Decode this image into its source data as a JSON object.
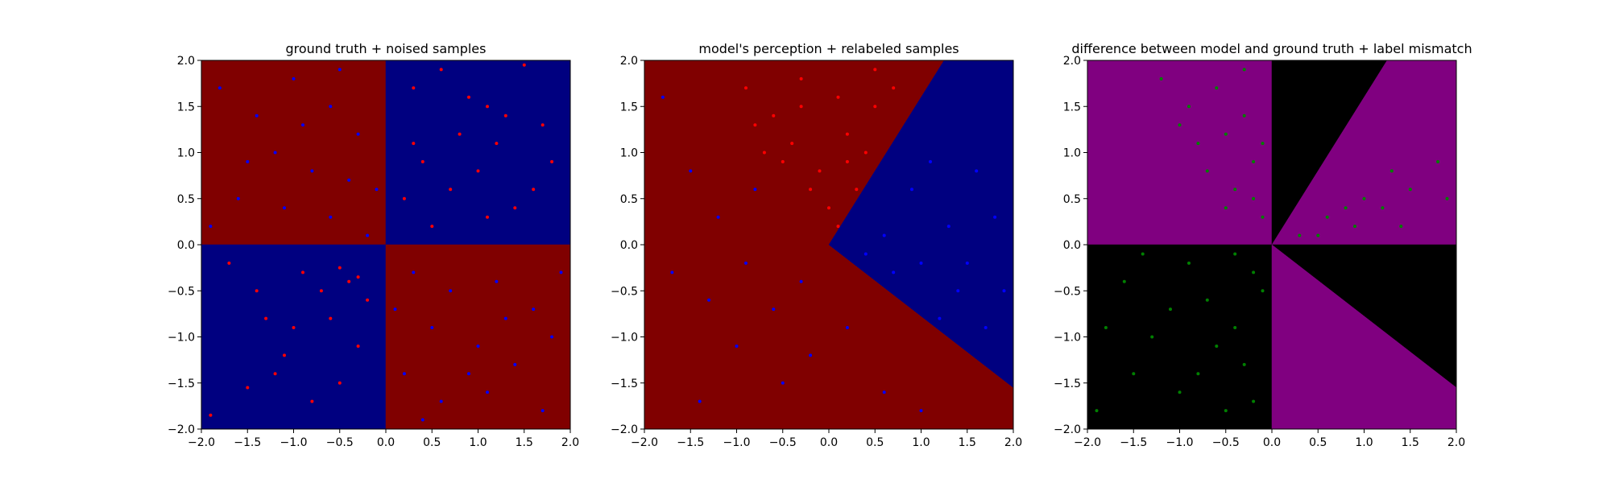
{
  "colors": {
    "dark_red": "#800000",
    "dark_blue": "#000080",
    "purple": "#800080",
    "black": "#000000",
    "point_red": "#ff0000",
    "point_blue": "#0000ff",
    "point_green": "#008000"
  },
  "chart_data": [
    {
      "type": "scatter",
      "title": "ground truth + noised samples",
      "xlabel": "",
      "ylabel": "",
      "xlim": [
        -2.0,
        2.0
      ],
      "ylim": [
        -2.0,
        2.0
      ],
      "xticks": [
        "−2.0",
        "−1.5",
        "−1.0",
        "−0.5",
        "0.0",
        "0.5",
        "1.0",
        "1.5",
        "2.0"
      ],
      "yticks": [
        "−2.0",
        "−1.5",
        "−1.0",
        "−0.5",
        "0.0",
        "0.5",
        "1.0",
        "1.5",
        "2.0"
      ],
      "grid": false,
      "background_regions": [
        {
          "label": "class red",
          "color": "#800000",
          "polygon": [
            [
              -2,
              0
            ],
            [
              0,
              0
            ],
            [
              0,
              2
            ],
            [
              -2,
              2
            ]
          ]
        },
        {
          "label": "class blue",
          "color": "#000080",
          "polygon": [
            [
              0,
              0
            ],
            [
              2,
              0
            ],
            [
              2,
              2
            ],
            [
              0,
              2
            ]
          ]
        },
        {
          "label": "class blue",
          "color": "#000080",
          "polygon": [
            [
              -2,
              -2
            ],
            [
              0,
              -2
            ],
            [
              0,
              0
            ],
            [
              -2,
              0
            ]
          ]
        },
        {
          "label": "class red",
          "color": "#800000",
          "polygon": [
            [
              0,
              -2
            ],
            [
              2,
              -2
            ],
            [
              2,
              0
            ],
            [
              0,
              0
            ]
          ]
        }
      ],
      "series": [
        {
          "color": "#ff0000",
          "points": [
            [
              0.3,
              1.7
            ],
            [
              0.6,
              1.9
            ],
            [
              1.1,
              1.5
            ],
            [
              1.5,
              1.95
            ],
            [
              0.8,
              1.2
            ],
            [
              1.2,
              1.1
            ],
            [
              0.4,
              0.9
            ],
            [
              1.7,
              1.3
            ],
            [
              0.2,
              0.5
            ],
            [
              0.7,
              0.6
            ],
            [
              1.0,
              0.8
            ],
            [
              1.4,
              0.4
            ],
            [
              1.8,
              0.9
            ],
            [
              0.5,
              0.2
            ],
            [
              1.1,
              0.3
            ],
            [
              1.6,
              0.6
            ],
            [
              0.9,
              1.6
            ],
            [
              0.3,
              1.1
            ],
            [
              1.3,
              1.4
            ],
            [
              -1.9,
              -1.85
            ],
            [
              -1.5,
              -1.55
            ],
            [
              -1.2,
              -1.4
            ],
            [
              -0.8,
              -1.7
            ],
            [
              -0.5,
              -1.5
            ],
            [
              -0.3,
              -1.1
            ],
            [
              -0.6,
              -0.8
            ],
            [
              -1.0,
              -0.9
            ],
            [
              -1.4,
              -0.5
            ],
            [
              -0.4,
              -0.4
            ],
            [
              -0.2,
              -0.6
            ],
            [
              -0.9,
              -0.3
            ],
            [
              -1.7,
              -0.2
            ],
            [
              -0.5,
              -0.25
            ],
            [
              -0.3,
              -0.35
            ],
            [
              -1.1,
              -1.2
            ],
            [
              -0.7,
              -0.5
            ],
            [
              -1.3,
              -0.8
            ]
          ]
        },
        {
          "color": "#0000ff",
          "points": [
            [
              -1.8,
              1.7
            ],
            [
              -1.4,
              1.4
            ],
            [
              -1.0,
              1.8
            ],
            [
              -0.6,
              1.5
            ],
            [
              -0.3,
              1.2
            ],
            [
              -1.2,
              1.0
            ],
            [
              -0.8,
              0.8
            ],
            [
              -0.4,
              0.7
            ],
            [
              -1.6,
              0.5
            ],
            [
              -1.1,
              0.4
            ],
            [
              -0.6,
              0.3
            ],
            [
              -0.2,
              0.1
            ],
            [
              -1.9,
              0.2
            ],
            [
              -0.9,
              1.3
            ],
            [
              -0.5,
              1.9
            ],
            [
              -1.5,
              0.9
            ],
            [
              -0.1,
              0.6
            ],
            [
              0.3,
              -0.3
            ],
            [
              0.7,
              -0.5
            ],
            [
              1.2,
              -0.4
            ],
            [
              1.6,
              -0.7
            ],
            [
              0.5,
              -0.9
            ],
            [
              1.0,
              -1.1
            ],
            [
              1.4,
              -1.3
            ],
            [
              1.8,
              -1.0
            ],
            [
              0.2,
              -1.4
            ],
            [
              0.6,
              -1.7
            ],
            [
              1.1,
              -1.6
            ],
            [
              1.7,
              -1.8
            ],
            [
              0.4,
              -1.9
            ],
            [
              0.9,
              -1.4
            ],
            [
              1.3,
              -0.8
            ],
            [
              0.1,
              -0.7
            ],
            [
              1.9,
              -0.3
            ]
          ]
        }
      ]
    },
    {
      "type": "scatter",
      "title": "model's perception + relabeled samples",
      "xlabel": "",
      "ylabel": "",
      "xlim": [
        -2.0,
        2.0
      ],
      "ylim": [
        -2.0,
        2.0
      ],
      "xticks": [
        "−2.0",
        "−1.5",
        "−1.0",
        "−0.5",
        "0.0",
        "0.5",
        "1.0",
        "1.5",
        "2.0"
      ],
      "yticks": [
        "−2.0",
        "−1.5",
        "−1.0",
        "−0.5",
        "0.0",
        "0.5",
        "1.0",
        "1.5",
        "2.0"
      ],
      "grid": false,
      "background_regions": [
        {
          "label": "class red",
          "color": "#800000",
          "polygon": [
            [
              -2,
              -2
            ],
            [
              2,
              -2
            ],
            [
              2,
              -1.55
            ],
            [
              0,
              0
            ],
            [
              1.25,
              2
            ],
            [
              -2,
              2
            ]
          ]
        },
        {
          "label": "class blue",
          "color": "#000080",
          "polygon": [
            [
              0,
              0
            ],
            [
              2,
              -1.55
            ],
            [
              2,
              2
            ],
            [
              1.25,
              2
            ]
          ]
        }
      ],
      "series": [
        {
          "color": "#ff0000",
          "points": [
            [
              -0.9,
              1.7
            ],
            [
              -0.6,
              1.4
            ],
            [
              -0.3,
              1.8
            ],
            [
              0.1,
              1.6
            ],
            [
              0.5,
              1.9
            ],
            [
              -0.7,
              1.0
            ],
            [
              -0.4,
              1.1
            ],
            [
              -0.1,
              0.8
            ],
            [
              0.2,
              1.2
            ],
            [
              0.5,
              1.5
            ],
            [
              -0.8,
              1.3
            ],
            [
              0.3,
              0.6
            ],
            [
              0.0,
              0.4
            ],
            [
              -0.2,
              0.6
            ],
            [
              0.4,
              1.0
            ],
            [
              0.7,
              1.7
            ],
            [
              -0.5,
              0.9
            ],
            [
              0.1,
              0.2
            ],
            [
              0.2,
              0.9
            ],
            [
              -0.3,
              1.5
            ]
          ]
        },
        {
          "color": "#0000ff",
          "points": [
            [
              -1.8,
              1.6
            ],
            [
              -1.5,
              0.8
            ],
            [
              -1.2,
              0.3
            ],
            [
              -1.7,
              -0.3
            ],
            [
              -1.3,
              -0.6
            ],
            [
              -0.9,
              -0.2
            ],
            [
              -0.6,
              -0.7
            ],
            [
              -0.3,
              -0.4
            ],
            [
              -1.0,
              -1.1
            ],
            [
              -0.5,
              -1.5
            ],
            [
              -1.4,
              -1.7
            ],
            [
              -0.2,
              -1.2
            ],
            [
              0.2,
              -0.9
            ],
            [
              0.6,
              -1.6
            ],
            [
              1.0,
              -1.8
            ],
            [
              -0.8,
              0.6
            ],
            [
              0.6,
              0.1
            ],
            [
              1.0,
              -0.2
            ],
            [
              1.4,
              -0.5
            ],
            [
              1.8,
              0.3
            ],
            [
              0.9,
              0.6
            ],
            [
              1.3,
              0.2
            ],
            [
              1.7,
              -0.9
            ],
            [
              1.2,
              -0.8
            ],
            [
              0.7,
              -0.3
            ],
            [
              1.6,
              0.8
            ],
            [
              0.4,
              -0.1
            ],
            [
              1.1,
              0.9
            ],
            [
              1.5,
              -0.2
            ],
            [
              1.9,
              -0.5
            ]
          ]
        }
      ]
    },
    {
      "type": "scatter",
      "title": "difference between model and ground truth + label mismatch",
      "xlabel": "",
      "ylabel": "",
      "xlim": [
        -2.0,
        2.0
      ],
      "ylim": [
        -2.0,
        2.0
      ],
      "xticks": [
        "−2.0",
        "−1.5",
        "−1.0",
        "−0.5",
        "0.0",
        "0.5",
        "1.0",
        "1.5",
        "2.0"
      ],
      "yticks": [
        "−2.0",
        "−1.5",
        "−1.0",
        "−0.5",
        "0.0",
        "0.5",
        "1.0",
        "1.5",
        "2.0"
      ],
      "grid": false,
      "background_regions": [
        {
          "label": "agree",
          "color": "#800080",
          "polygon": [
            [
              -2,
              0
            ],
            [
              0,
              0
            ],
            [
              0,
              2
            ],
            [
              -2,
              2
            ]
          ]
        },
        {
          "label": "differ",
          "color": "#000000",
          "polygon": [
            [
              0,
              0
            ],
            [
              1.25,
              2
            ],
            [
              0,
              2
            ]
          ]
        },
        {
          "label": "agree",
          "color": "#800080",
          "polygon": [
            [
              0,
              0
            ],
            [
              2,
              0
            ],
            [
              2,
              2
            ],
            [
              1.25,
              2
            ]
          ]
        },
        {
          "label": "differ",
          "color": "#000000",
          "polygon": [
            [
              -2,
              -2
            ],
            [
              0,
              -2
            ],
            [
              0,
              0
            ],
            [
              -2,
              0
            ]
          ]
        },
        {
          "label": "differ",
          "color": "#000000",
          "polygon": [
            [
              0,
              0
            ],
            [
              2,
              0
            ],
            [
              2,
              -1.55
            ]
          ]
        },
        {
          "label": "agree",
          "color": "#800080",
          "polygon": [
            [
              0,
              0
            ],
            [
              2,
              -1.55
            ],
            [
              2,
              -2
            ],
            [
              0,
              -2
            ]
          ]
        }
      ],
      "series": [
        {
          "color": "#008000",
          "points": [
            [
              -1.2,
              1.8
            ],
            [
              -0.9,
              1.5
            ],
            [
              -0.6,
              1.7
            ],
            [
              -0.3,
              1.9
            ],
            [
              -0.8,
              1.1
            ],
            [
              -0.5,
              1.2
            ],
            [
              -0.2,
              0.9
            ],
            [
              -0.4,
              0.6
            ],
            [
              -0.1,
              0.3
            ],
            [
              -0.7,
              0.8
            ],
            [
              -0.3,
              1.4
            ],
            [
              -0.1,
              1.1
            ],
            [
              -0.5,
              0.4
            ],
            [
              -1.0,
              1.3
            ],
            [
              -0.2,
              0.5
            ],
            [
              0.3,
              0.1
            ],
            [
              0.6,
              0.3
            ],
            [
              0.9,
              0.2
            ],
            [
              1.2,
              0.4
            ],
            [
              1.5,
              0.6
            ],
            [
              1.8,
              0.9
            ],
            [
              0.5,
              0.1
            ],
            [
              1.0,
              0.5
            ],
            [
              1.4,
              0.2
            ],
            [
              1.9,
              0.5
            ],
            [
              0.8,
              0.4
            ],
            [
              1.3,
              0.8
            ],
            [
              -1.9,
              -1.8
            ],
            [
              -1.6,
              -0.4
            ],
            [
              -1.3,
              -1.0
            ],
            [
              -1.0,
              -1.6
            ],
            [
              -0.7,
              -0.6
            ],
            [
              -0.4,
              -0.9
            ],
            [
              -0.2,
              -0.3
            ],
            [
              -0.5,
              -1.8
            ],
            [
              -0.9,
              -0.2
            ],
            [
              -1.5,
              -1.4
            ],
            [
              -0.3,
              -1.3
            ],
            [
              -0.6,
              -1.1
            ],
            [
              -1.1,
              -0.7
            ],
            [
              -1.8,
              -0.9
            ],
            [
              -0.1,
              -0.5
            ],
            [
              -0.8,
              -1.4
            ],
            [
              -1.4,
              -0.1
            ],
            [
              -0.4,
              -0.1
            ],
            [
              -0.2,
              -1.7
            ]
          ]
        }
      ]
    }
  ]
}
